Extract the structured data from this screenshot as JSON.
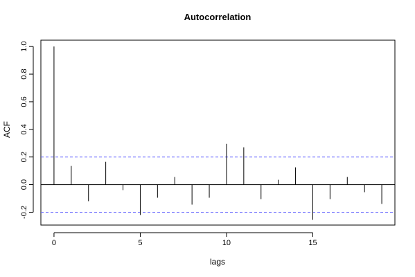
{
  "chart_data": {
    "type": "bar",
    "title": "Autocorrelation",
    "xlabel": "lags",
    "ylabel": "ACF",
    "x": [
      0,
      1,
      2,
      3,
      4,
      5,
      6,
      7,
      8,
      9,
      10,
      11,
      12,
      13,
      14,
      15,
      16,
      17,
      18,
      19
    ],
    "values": [
      1.0,
      0.135,
      -0.12,
      0.165,
      -0.04,
      -0.22,
      -0.095,
      0.055,
      -0.145,
      -0.095,
      0.295,
      0.27,
      -0.105,
      0.035,
      0.125,
      -0.255,
      -0.105,
      0.055,
      -0.055,
      -0.14
    ],
    "xlim": [
      -0.76,
      19.76
    ],
    "ylim": [
      -0.293,
      1.046
    ],
    "xticks": [
      0,
      5,
      10,
      15
    ],
    "yticks": [
      -0.2,
      0.0,
      0.2,
      0.4,
      0.6,
      0.8,
      1.0
    ],
    "ytick_labels": [
      "-0.2",
      "0.0",
      "0.2",
      "0.4",
      "0.6",
      "0.8",
      "1.0"
    ],
    "confidence_bound": 0.2,
    "confidence_color": "#6666ff",
    "bar_color": "#000000",
    "zero_line": true,
    "grid": false
  }
}
